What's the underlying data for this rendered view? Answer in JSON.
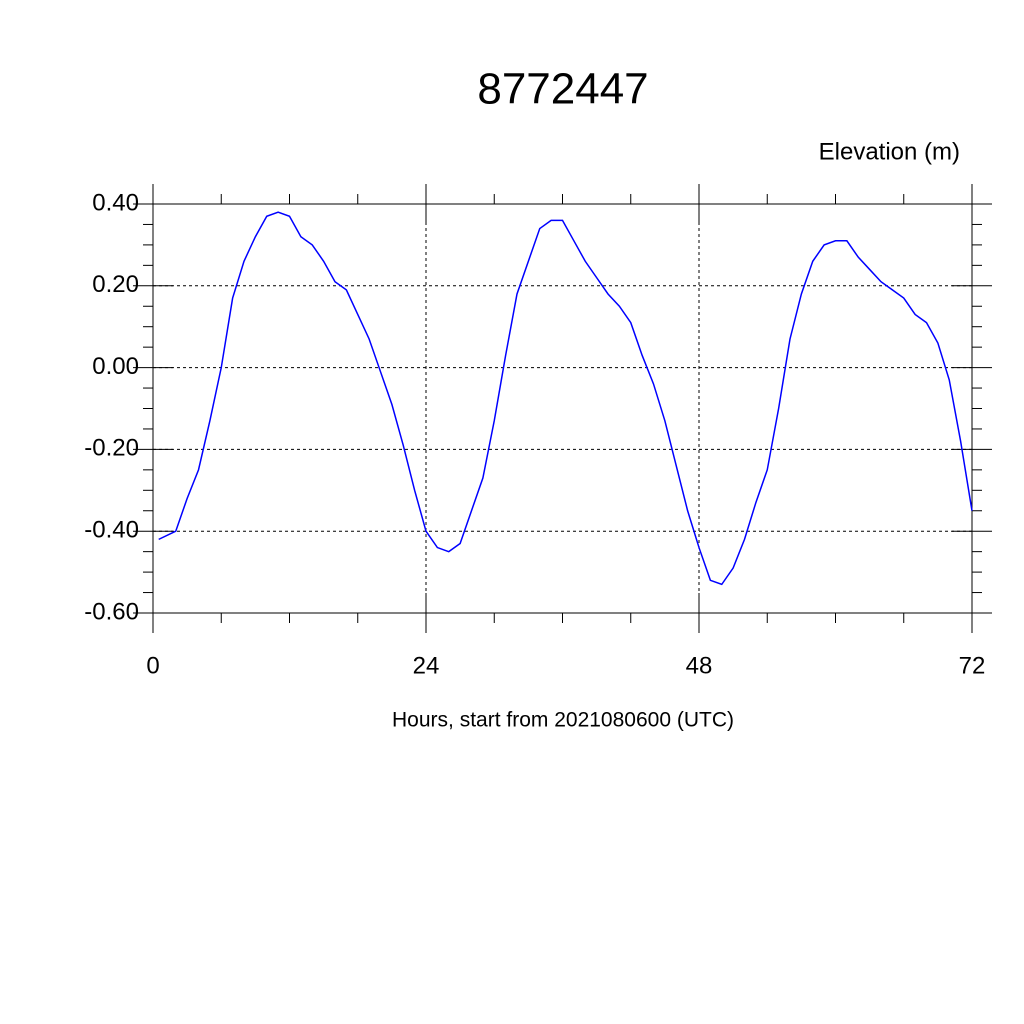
{
  "chart_data": {
    "type": "line",
    "title": "8772447",
    "y_label": "Elevation (m)",
    "x_label": "Hours, start from 2021080600 (UTC)",
    "x": [
      0.5,
      2,
      3,
      4,
      5,
      6,
      7,
      8,
      9,
      10,
      11,
      12,
      13,
      14,
      15,
      16,
      17,
      18,
      19,
      20,
      21,
      22,
      23,
      24,
      25,
      26,
      27,
      28,
      29,
      30,
      31,
      32,
      33,
      34,
      35,
      36,
      37,
      38,
      39,
      40,
      41,
      42,
      43,
      44,
      45,
      46,
      47,
      48,
      49,
      50,
      51,
      52,
      53,
      54,
      55,
      56,
      57,
      58,
      59,
      60,
      61,
      62,
      63,
      64,
      65,
      66,
      67,
      68,
      69,
      70,
      71,
      72
    ],
    "series": [
      {
        "color": "#0000ff",
        "values": [
          -0.42,
          -0.4,
          -0.32,
          -0.25,
          -0.13,
          0.0,
          0.17,
          0.26,
          0.32,
          0.37,
          0.38,
          0.37,
          0.32,
          0.3,
          0.26,
          0.21,
          0.19,
          0.13,
          0.07,
          -0.01,
          -0.09,
          -0.19,
          -0.3,
          -0.4,
          -0.44,
          -0.45,
          -0.43,
          -0.35,
          -0.27,
          -0.13,
          0.03,
          0.18,
          0.26,
          0.34,
          0.36,
          0.36,
          0.31,
          0.26,
          0.22,
          0.18,
          0.15,
          0.11,
          0.03,
          -0.04,
          -0.13,
          -0.24,
          -0.35,
          -0.44,
          -0.52,
          -0.53,
          -0.49,
          -0.42,
          -0.33,
          -0.25,
          -0.1,
          0.07,
          0.18,
          0.26,
          0.3,
          0.31,
          0.31,
          0.27,
          0.24,
          0.21,
          0.19,
          0.17,
          0.13,
          0.11,
          0.06,
          -0.03,
          -0.18,
          -0.35
        ]
      }
    ],
    "xlim": [
      0,
      72
    ],
    "xticks": [
      0,
      24,
      48,
      72
    ],
    "xminorticks": [
      6,
      12,
      18,
      30,
      36,
      42,
      54,
      60,
      66
    ],
    "ylim": [
      -0.6,
      0.4
    ],
    "yticks": [
      {
        "value": -0.6,
        "label": "-0.60"
      },
      {
        "value": -0.4,
        "label": "-0.40"
      },
      {
        "value": -0.2,
        "label": "-0.20"
      },
      {
        "value": 0,
        "label": "0.00"
      },
      {
        "value": 0.2,
        "label": "0.20"
      },
      {
        "value": 0.4,
        "label": "0.40"
      }
    ],
    "yminorticks": [
      -0.55,
      -0.5,
      -0.45,
      -0.35,
      -0.3,
      -0.25,
      -0.15,
      -0.1,
      -0.05,
      0.05,
      0.1,
      0.15,
      0.25,
      0.3,
      0.35
    ],
    "grid": true
  }
}
